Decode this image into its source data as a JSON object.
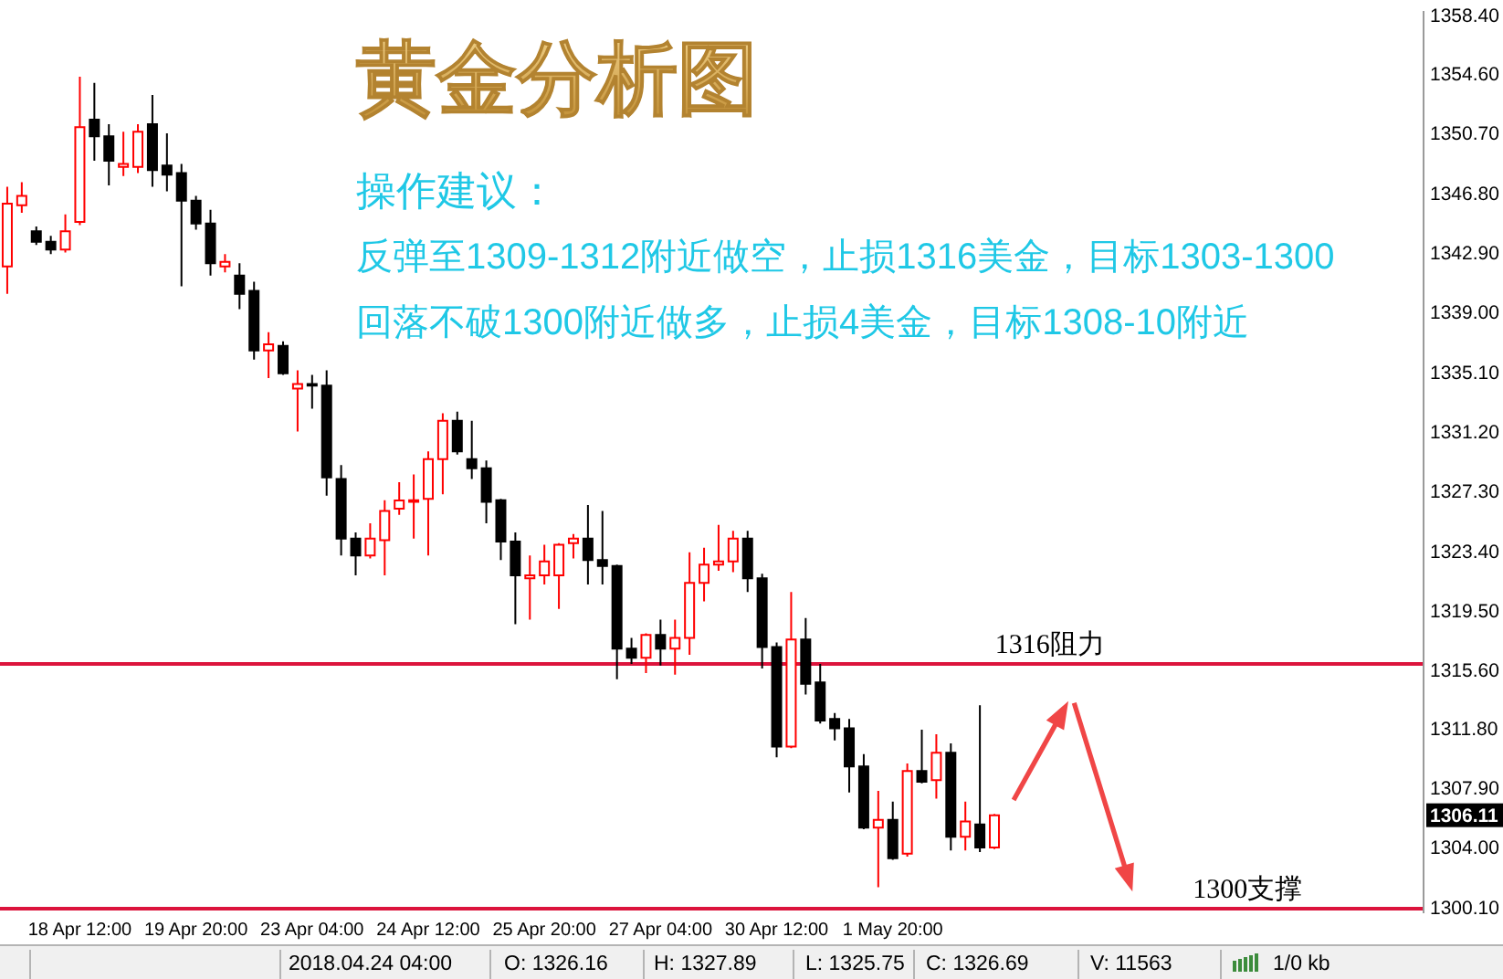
{
  "chart_data": {
    "type": "candlestick",
    "title": "黄金分析图",
    "subtitle": "操作建议：",
    "categories": [
      null,
      null,
      null,
      null,
      null,
      "18 Apr 12:00",
      null,
      null,
      null,
      null,
      null,
      null,
      null,
      "19 Apr 20:00",
      null,
      null,
      null,
      null,
      null,
      null,
      null,
      "23 Apr 04:00",
      null,
      null,
      null,
      null,
      null,
      null,
      null,
      "24 Apr 12:00",
      null,
      null,
      null,
      null,
      null,
      null,
      null,
      "25 Apr 20:00",
      null,
      null,
      null,
      null,
      null,
      null,
      null,
      "27 Apr 04:00",
      null,
      null,
      null,
      null,
      null,
      null,
      null,
      "30 Apr 12:00",
      null,
      null,
      null,
      null,
      null,
      null,
      null,
      "1 May 20:00",
      null,
      null,
      null,
      null,
      null,
      null,
      null,
      null,
      null,
      null,
      null,
      null,
      null,
      null,
      null,
      null,
      null,
      null,
      null,
      null,
      null,
      null,
      null,
      null,
      null,
      null,
      null,
      null,
      null,
      null,
      null,
      null,
      null,
      null,
      null,
      null
    ],
    "ohlc": [
      [
        1342.0,
        1347.2,
        1340.2,
        1346.1
      ],
      [
        1346.0,
        1347.5,
        1345.5,
        1346.6
      ],
      [
        1344.3,
        1344.6,
        1343.4,
        1343.6
      ],
      [
        1343.6,
        1344.0,
        1342.8,
        1343.1
      ],
      [
        1343.1,
        1345.4,
        1342.9,
        1344.3
      ],
      [
        1344.9,
        1354.4,
        1344.7,
        1351.1
      ],
      [
        1351.6,
        1354.0,
        1348.9,
        1350.5
      ],
      [
        1350.5,
        1351.3,
        1347.3,
        1348.9
      ],
      [
        1348.5,
        1350.8,
        1347.9,
        1348.7
      ],
      [
        1348.5,
        1351.3,
        1348.1,
        1350.8
      ],
      [
        1351.3,
        1353.2,
        1347.2,
        1348.3
      ],
      [
        1348.6,
        1350.7,
        1346.9,
        1348.0
      ],
      [
        1348.1,
        1348.7,
        1340.7,
        1346.3
      ],
      [
        1346.3,
        1346.6,
        1344.4,
        1344.8
      ],
      [
        1344.8,
        1345.7,
        1341.4,
        1342.2
      ],
      [
        1342.0,
        1342.8,
        1341.6,
        1342.3
      ],
      [
        1341.4,
        1342.2,
        1339.2,
        1340.2
      ],
      [
        1340.4,
        1341.0,
        1335.9,
        1336.5
      ],
      [
        1336.5,
        1337.7,
        1334.7,
        1336.9
      ],
      [
        1336.8,
        1337.1,
        1334.9,
        1335.0
      ],
      [
        1334.0,
        1335.2,
        1331.2,
        1334.3
      ],
      [
        1334.3,
        1334.9,
        1332.7,
        1334.2
      ],
      [
        1334.2,
        1335.2,
        1327.0,
        1328.2
      ],
      [
        1328.1,
        1329.0,
        1323.1,
        1324.2
      ],
      [
        1324.2,
        1324.6,
        1321.8,
        1323.1
      ],
      [
        1323.1,
        1325.2,
        1322.9,
        1324.2
      ],
      [
        1324.1,
        1326.7,
        1321.8,
        1326.0
      ],
      [
        1326.16,
        1327.89,
        1325.75,
        1326.69
      ],
      [
        1326.6,
        1328.4,
        1324.2,
        1326.7
      ],
      [
        1326.8,
        1329.9,
        1323.1,
        1329.4
      ],
      [
        1329.4,
        1332.4,
        1327.1,
        1331.9
      ],
      [
        1331.9,
        1332.5,
        1329.7,
        1329.9
      ],
      [
        1329.4,
        1331.9,
        1328.1,
        1328.8
      ],
      [
        1328.8,
        1329.3,
        1325.2,
        1326.6
      ],
      [
        1326.7,
        1326.8,
        1322.8,
        1324.0
      ],
      [
        1324.0,
        1324.6,
        1318.6,
        1321.8
      ],
      [
        1321.6,
        1323.1,
        1318.9,
        1321.8
      ],
      [
        1321.8,
        1323.8,
        1321.2,
        1322.7
      ],
      [
        1321.8,
        1323.9,
        1319.6,
        1323.8
      ],
      [
        1323.9,
        1324.5,
        1322.9,
        1324.2
      ],
      [
        1324.2,
        1326.4,
        1321.2,
        1322.8
      ],
      [
        1322.8,
        1326.0,
        1321.2,
        1322.4
      ],
      [
        1322.4,
        1322.5,
        1315.0,
        1317.0
      ],
      [
        1317.0,
        1317.7,
        1316.0,
        1316.4
      ],
      [
        1316.4,
        1318.0,
        1315.4,
        1317.9
      ],
      [
        1317.9,
        1318.9,
        1315.9,
        1317.0
      ],
      [
        1317.0,
        1318.9,
        1315.3,
        1317.7
      ],
      [
        1317.7,
        1323.3,
        1316.6,
        1321.3
      ],
      [
        1321.3,
        1323.6,
        1320.1,
        1322.5
      ],
      [
        1322.5,
        1325.1,
        1322.1,
        1322.7
      ],
      [
        1322.7,
        1324.7,
        1322.0,
        1324.2
      ],
      [
        1324.2,
        1324.7,
        1320.7,
        1321.6
      ],
      [
        1321.6,
        1321.9,
        1315.7,
        1317.1
      ],
      [
        1317.1,
        1317.4,
        1309.9,
        1310.6
      ],
      [
        1310.6,
        1320.7,
        1310.5,
        1317.6
      ],
      [
        1317.6,
        1319.0,
        1314.0,
        1314.7
      ],
      [
        1314.8,
        1316.0,
        1312.1,
        1312.3
      ],
      [
        1312.4,
        1312.8,
        1311.0,
        1311.8
      ],
      [
        1311.8,
        1312.4,
        1307.6,
        1309.3
      ],
      [
        1309.3,
        1310.1,
        1305.2,
        1305.3
      ],
      [
        1305.3,
        1307.7,
        1301.4,
        1305.8
      ],
      [
        1305.8,
        1307.0,
        1303.2,
        1303.3
      ],
      [
        1303.6,
        1309.5,
        1303.4,
        1309.0
      ],
      [
        1309.0,
        1311.7,
        1308.2,
        1308.3
      ],
      [
        1308.4,
        1311.4,
        1307.2,
        1310.2
      ],
      [
        1310.2,
        1310.8,
        1303.8,
        1304.7
      ],
      [
        1304.7,
        1307.0,
        1303.8,
        1305.7
      ],
      [
        1305.5,
        1313.3,
        1303.7,
        1304.0
      ],
      [
        1304.0,
        1306.2,
        1303.9,
        1306.11
      ],
      null,
      null,
      null,
      null,
      null,
      null,
      null,
      null,
      null,
      null,
      null,
      null,
      null,
      null,
      null,
      null,
      null,
      null,
      null,
      null,
      null,
      null,
      null,
      null,
      null,
      null,
      null,
      null,
      null
    ],
    "colors": [
      "#ff0000",
      "#ff0000",
      "#000000",
      "#000000",
      "#ff0000",
      "#ff0000",
      "#000000",
      "#000000",
      "#ff0000",
      "#ff0000",
      "#000000",
      "#000000",
      "#000000",
      "#000000",
      "#000000",
      "#ff0000",
      "#000000",
      "#000000",
      "#ff0000",
      "#000000",
      "#ff0000",
      "#000000",
      "#000000",
      "#000000",
      "#000000",
      "#ff0000",
      "#ff0000",
      "#ff0000",
      "#ff0000",
      "#ff0000",
      "#ff0000",
      "#000000",
      "#000000",
      "#000000",
      "#000000",
      "#000000",
      "#ff0000",
      "#ff0000",
      "#ff0000",
      "#ff0000",
      "#000000",
      "#000000",
      "#000000",
      "#000000",
      "#ff0000",
      "#000000",
      "#ff0000",
      "#ff0000",
      "#ff0000",
      "#ff0000",
      "#ff0000",
      "#000000",
      "#000000",
      "#000000",
      "#ff0000",
      "#000000",
      "#000000",
      "#000000",
      "#000000",
      "#000000",
      "#ff0000",
      "#000000",
      "#ff0000",
      "#000000",
      "#ff0000",
      "#000000",
      "#ff0000",
      "#000000",
      "#ff0000",
      null,
      null,
      null,
      null,
      null,
      null,
      null,
      null,
      null,
      null,
      null,
      null,
      null,
      null,
      null,
      null,
      null,
      null,
      null,
      null,
      null,
      null,
      null,
      null,
      null,
      null,
      null,
      null,
      null
    ],
    "ylim": [
      1299.7,
      1358.7
    ],
    "yticks": [
      {
        "value": 1358.4,
        "label": "1358.40"
      },
      {
        "value": 1354.6,
        "label": "1354.60"
      },
      {
        "value": 1350.7,
        "label": "1350.70"
      },
      {
        "value": 1346.8,
        "label": "1346.80"
      },
      {
        "value": 1342.9,
        "label": "1342.90"
      },
      {
        "value": 1339.0,
        "label": "1339.00"
      },
      {
        "value": 1335.1,
        "label": "1335.10"
      },
      {
        "value": 1331.2,
        "label": "1331.20"
      },
      {
        "value": 1327.3,
        "label": "1327.30"
      },
      {
        "value": 1323.4,
        "label": "1323.40"
      },
      {
        "value": 1319.5,
        "label": "1319.50"
      },
      {
        "value": 1315.6,
        "label": "1315.60"
      },
      {
        "value": 1311.8,
        "label": "1311.80"
      },
      {
        "value": 1307.9,
        "label": "1307.90"
      },
      {
        "value": 1304.0,
        "label": "1304.00"
      },
      {
        "value": 1300.1,
        "label": "1300.10"
      }
    ],
    "ref_lines": [
      {
        "axis": "y",
        "value": 1316,
        "label": "1316阻力",
        "color": "#dc143c"
      },
      {
        "axis": "y",
        "value": 1300,
        "label": "1300支撑",
        "color": "#dc143c"
      }
    ],
    "annotations": [
      "反弹至1309-1312附近做空，止损1316美金，目标1303-1300",
      "回落不破1300附近做多，止损4美金，目标1308-10附近",
      "2018.04.24 04:00",
      "O: 1326.16",
      "H: 1327.89",
      "L: 1325.75",
      "C: 1326.69",
      "V: 11563",
      "1/0 kb",
      {
        "text": "1306.11",
        "y": 1306.11
      }
    ]
  }
}
